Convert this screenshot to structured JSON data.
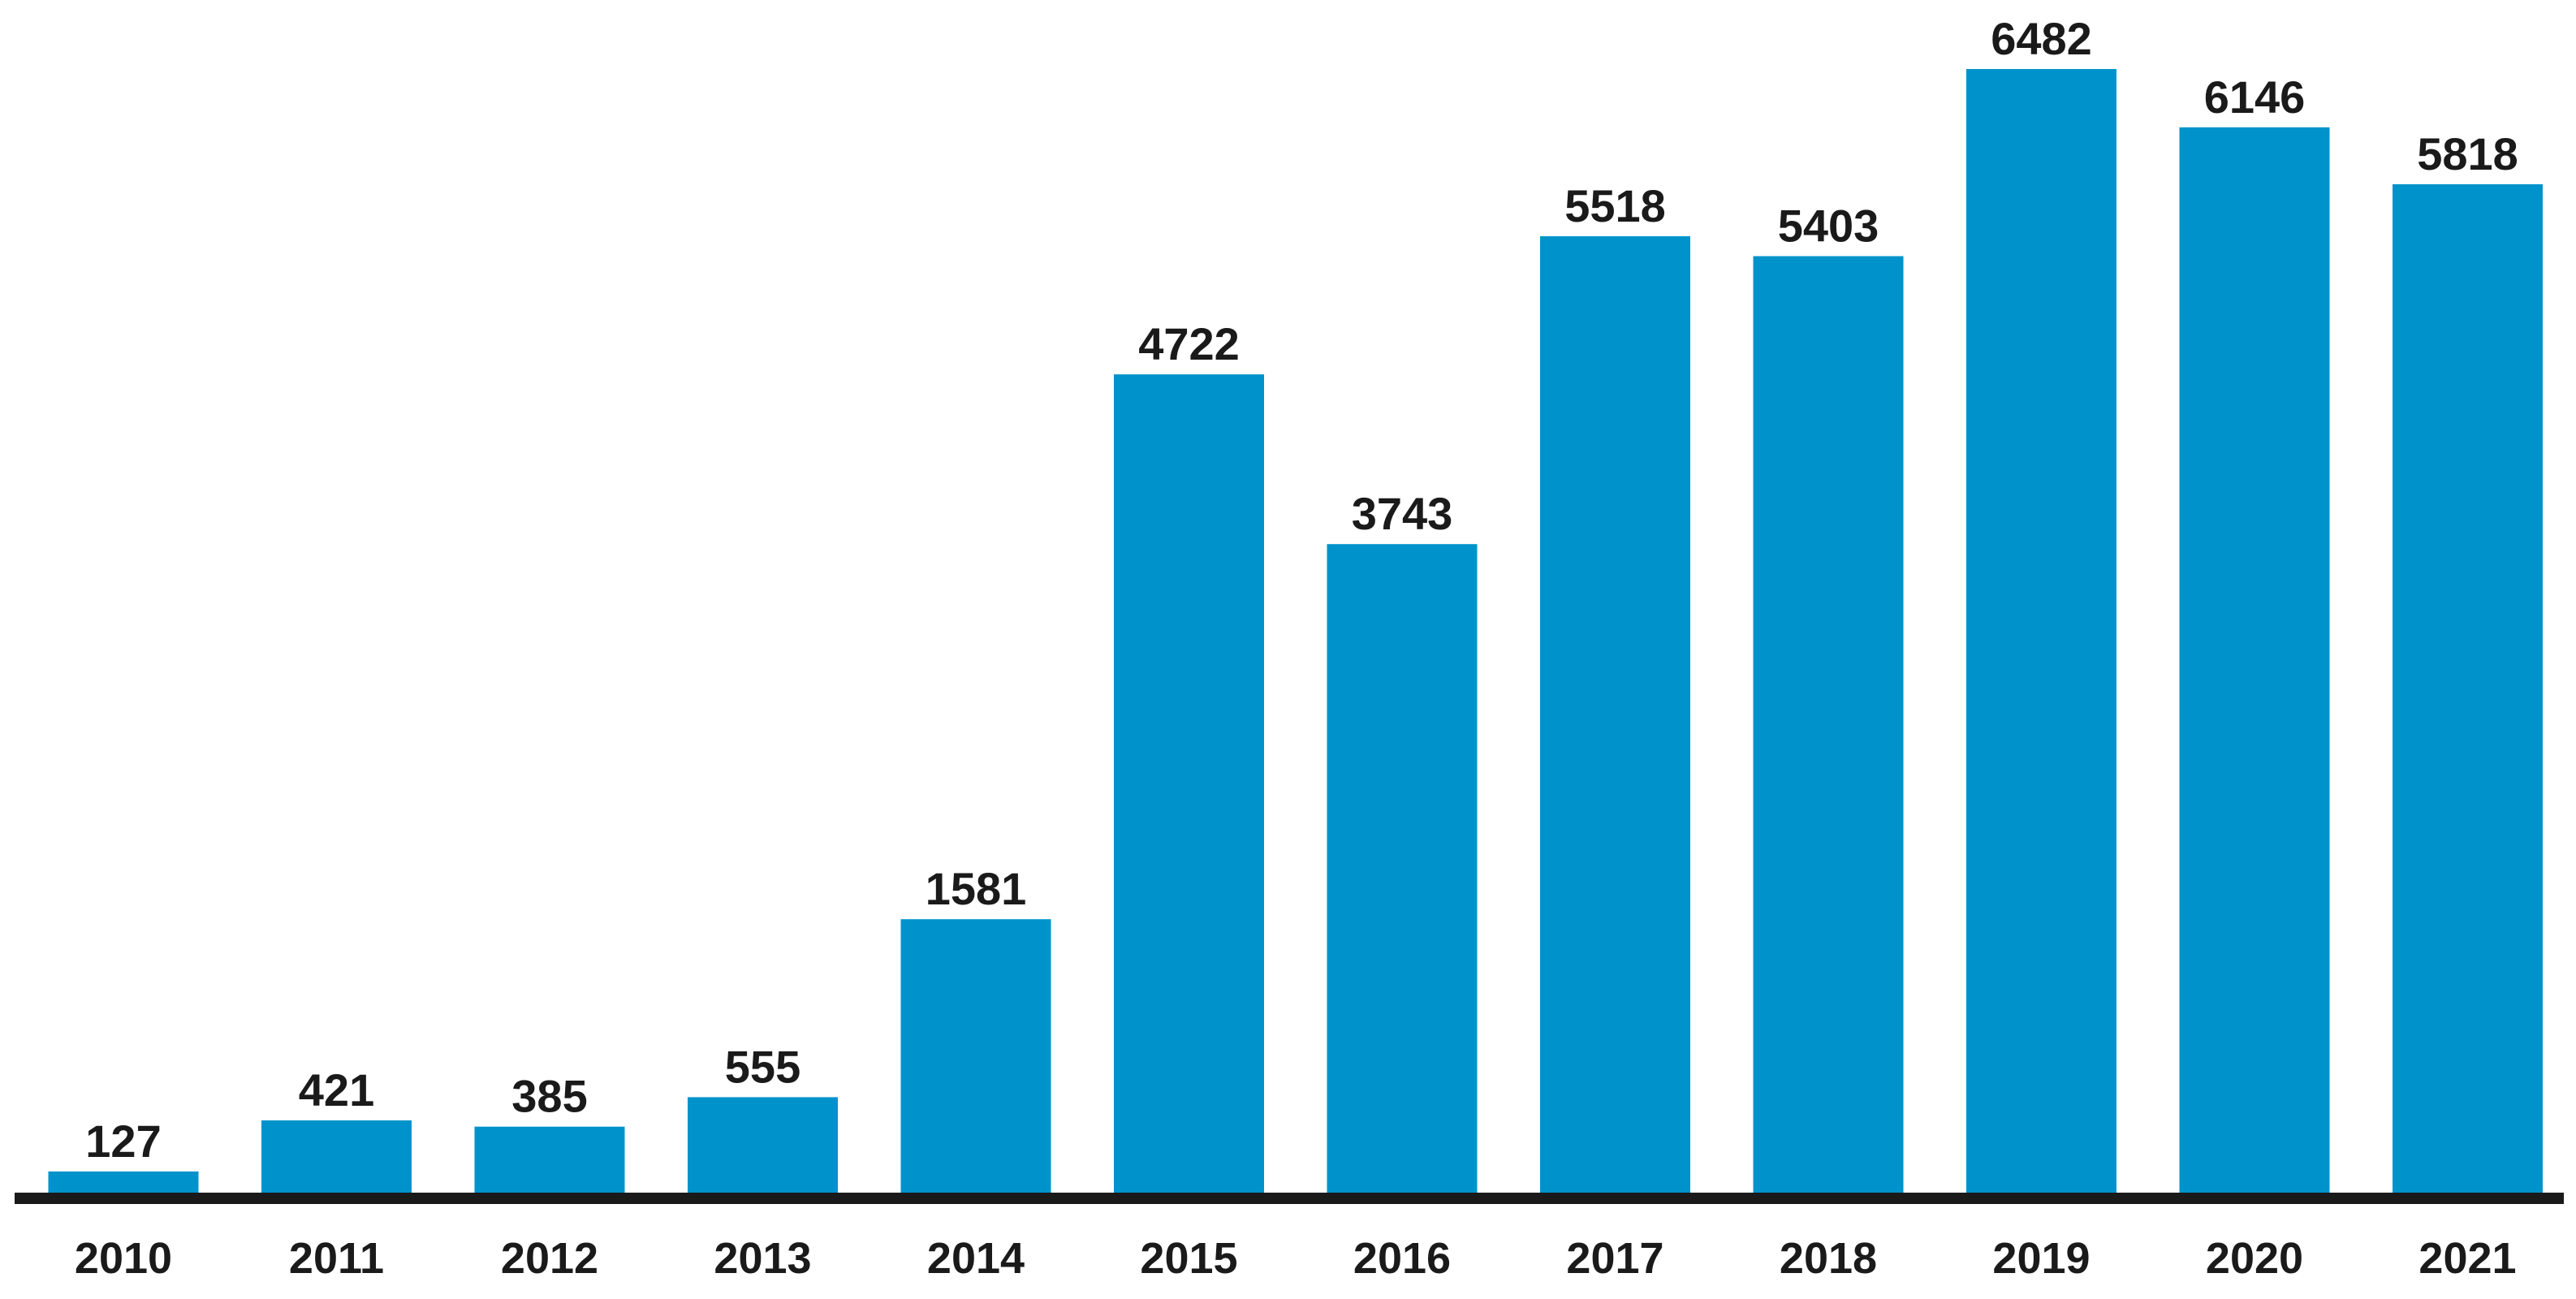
{
  "chart_data": {
    "type": "bar",
    "title": "",
    "xlabel": "",
    "ylabel": "",
    "categories": [
      "2010",
      "2011",
      "2012",
      "2013",
      "2014",
      "2015",
      "2016",
      "2017",
      "2018",
      "2019",
      "2020",
      "2021"
    ],
    "values": [
      127,
      421,
      385,
      555,
      1581,
      4722,
      3743,
      5518,
      5403,
      6482,
      6146,
      5818
    ],
    "data_labels": [
      "127",
      "421",
      "385",
      "555",
      "1581",
      "4722",
      "3743",
      "5518",
      "5403",
      "6482",
      "6146",
      "5818"
    ],
    "ylim": [
      0,
      6600
    ],
    "grid": false,
    "legend": "none",
    "bar_color": "#0093cb",
    "axis_color": "#1a1a1a"
  }
}
